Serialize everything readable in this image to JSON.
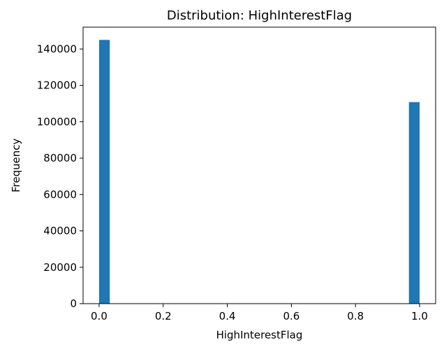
{
  "chart_data": {
    "type": "bar",
    "title": "Distribution: HighInterestFlag",
    "xlabel": "HighInterestFlag",
    "ylabel": "Frequency",
    "xlim": [
      -0.05,
      1.05
    ],
    "ylim": [
      0,
      152000
    ],
    "xticks": [
      0.0,
      0.2,
      0.4,
      0.6,
      0.8,
      1.0
    ],
    "xtick_labels": [
      "0.0",
      "0.2",
      "0.4",
      "0.6",
      "0.8",
      "1.0"
    ],
    "yticks": [
      0,
      20000,
      40000,
      60000,
      80000,
      100000,
      120000,
      140000
    ],
    "ytick_labels": [
      "0",
      "20000",
      "40000",
      "60000",
      "80000",
      "100000",
      "120000",
      "140000"
    ],
    "bar_color": "#1f77b4",
    "bin_width": 0.0333,
    "bars": [
      {
        "x_start": 0.0,
        "x_end": 0.0333,
        "value": 145000
      },
      {
        "x_start": 0.9667,
        "x_end": 1.0,
        "value": 110800
      }
    ],
    "grid": false,
    "legend": "none"
  }
}
